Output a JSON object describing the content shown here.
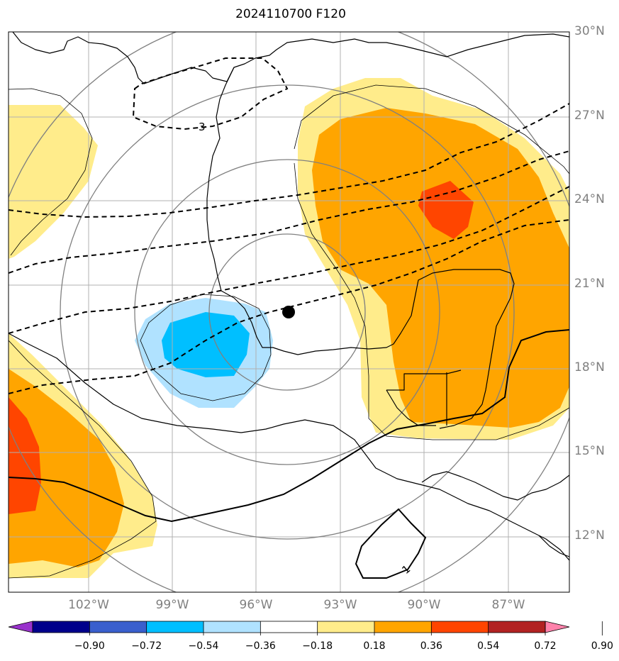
{
  "title": "2024110700 F120",
  "lat_labels": [
    "30°N",
    "27°N",
    "24°N",
    "21°N",
    "18°N",
    "15°N",
    "12°N"
  ],
  "lon_labels": [
    "102°W",
    "99°W",
    "96°W",
    "93°W",
    "90°W",
    "87°W"
  ],
  "contour_labels": [
    "3",
    "1"
  ],
  "colorbar": {
    "colors": [
      "#9932cc",
      "#00008b",
      "#3a5fcd",
      "#00bfff",
      "#b0e2ff",
      "#ffffff",
      "#ffec8b",
      "#ffa500",
      "#ff4500",
      "#b22222",
      "#ff82ab"
    ],
    "tick_labels": [
      "−0.90",
      "−0.72",
      "−0.54",
      "−0.36",
      "−0.18",
      "0.18",
      "0.36",
      "0.54",
      "0.72",
      "0.90"
    ]
  },
  "center_marker": {
    "lat": 20.0,
    "lon": -94.8
  }
}
